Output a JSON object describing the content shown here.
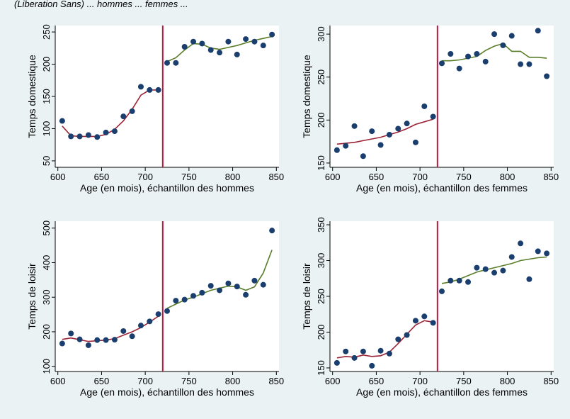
{
  "header_fragment": "(Liberation Sans) ... hommes ... femmes ...",
  "colors": {
    "page_background": "#eaf2f3",
    "plot_background": "#ffffff",
    "points": "#1a3f6f",
    "fit_before": "#9b2335",
    "fit_after": "#5a7d2a",
    "cutoff_line": "#c0143c"
  },
  "chart_data": [
    {
      "type": "scatter",
      "title": "",
      "xlabel": "Age (en mois), échantillon des hommes",
      "ylabel": "Temps domestique",
      "xlim": [
        597,
        853
      ],
      "ylim": [
        40,
        260
      ],
      "xticks": [
        600,
        650,
        700,
        750,
        800,
        850
      ],
      "yticks": [
        50,
        100,
        150,
        200,
        250
      ],
      "cutoff": 720,
      "grid": false,
      "points": {
        "x": [
          605,
          615,
          625,
          635,
          645,
          655,
          665,
          675,
          685,
          695,
          705,
          715,
          725,
          735,
          745,
          755,
          765,
          775,
          785,
          795,
          805,
          815,
          825,
          835,
          845
        ],
        "y": [
          112,
          88,
          88,
          90,
          87,
          94,
          96,
          119,
          127,
          165,
          160,
          160,
          202,
          202,
          227,
          235,
          232,
          222,
          218,
          235,
          215,
          239,
          235,
          229,
          246
        ]
      },
      "fit_before": {
        "x": [
          605,
          615,
          625,
          635,
          645,
          655,
          665,
          675,
          685,
          695,
          705,
          715
        ],
        "y": [
          104,
          89,
          88,
          88,
          88,
          91,
          99,
          112,
          130,
          152,
          160,
          160
        ]
      },
      "fit_after": {
        "x": [
          725,
          735,
          745,
          755,
          765,
          775,
          785,
          795,
          805,
          815,
          825,
          835,
          845
        ],
        "y": [
          204,
          210,
          222,
          232,
          231,
          225,
          223,
          226,
          229,
          233,
          237,
          240,
          243
        ]
      }
    },
    {
      "type": "scatter",
      "title": "",
      "xlabel": "Age (en mois), échantillon des femmes",
      "ylabel": "Temps domestique",
      "xlim": [
        597,
        853
      ],
      "ylim": [
        145,
        310
      ],
      "xticks": [
        600,
        650,
        700,
        750,
        800,
        850
      ],
      "yticks": [
        150,
        200,
        250,
        300
      ],
      "cutoff": 720,
      "grid": false,
      "points": {
        "x": [
          605,
          615,
          625,
          635,
          645,
          655,
          665,
          675,
          685,
          695,
          705,
          715,
          725,
          735,
          745,
          755,
          765,
          775,
          785,
          795,
          805,
          815,
          825,
          835,
          845
        ],
        "y": [
          165,
          170,
          193,
          158,
          187,
          171,
          183,
          190,
          196,
          174,
          216,
          204,
          266,
          277,
          260,
          274,
          277,
          268,
          300,
          287,
          298,
          265,
          265,
          304,
          251
        ]
      },
      "fit_before": {
        "x": [
          605,
          615,
          625,
          635,
          645,
          655,
          665,
          675,
          685,
          695,
          705,
          715
        ],
        "y": [
          172,
          173,
          174,
          176,
          178,
          180,
          183,
          186,
          190,
          195,
          198,
          201
        ]
      },
      "fit_after": {
        "x": [
          725,
          735,
          745,
          755,
          765,
          775,
          785,
          795,
          805,
          815,
          825,
          835,
          845
        ],
        "y": [
          269,
          269,
          270,
          272,
          274,
          281,
          286,
          289,
          280,
          280,
          273,
          273,
          272
        ]
      }
    },
    {
      "type": "scatter",
      "title": "",
      "xlabel": "Age (en mois), échantillon des hommes",
      "ylabel": "Temps de loisir",
      "xlim": [
        597,
        853
      ],
      "ylim": [
        85,
        520
      ],
      "xticks": [
        600,
        650,
        700,
        750,
        800,
        850
      ],
      "yticks": [
        100,
        200,
        300,
        400,
        500
      ],
      "cutoff": 720,
      "grid": false,
      "points": {
        "x": [
          605,
          615,
          625,
          635,
          645,
          655,
          665,
          675,
          685,
          695,
          705,
          715,
          725,
          735,
          745,
          755,
          765,
          775,
          785,
          795,
          805,
          815,
          825,
          835,
          845
        ],
        "y": [
          166,
          195,
          178,
          161,
          176,
          176,
          177,
          202,
          187,
          218,
          230,
          251,
          260,
          290,
          293,
          304,
          313,
          333,
          320,
          340,
          331,
          307,
          348,
          336,
          493
        ]
      },
      "fit_before": {
        "x": [
          605,
          615,
          625,
          635,
          645,
          655,
          665,
          675,
          685,
          695,
          705,
          715
        ],
        "y": [
          178,
          182,
          177,
          172,
          174,
          176,
          180,
          190,
          200,
          212,
          228,
          245
        ]
      },
      "fit_after": {
        "x": [
          725,
          735,
          745,
          755,
          765,
          775,
          785,
          795,
          805,
          815,
          825,
          835,
          845
        ],
        "y": [
          268,
          280,
          292,
          300,
          310,
          320,
          326,
          332,
          330,
          320,
          330,
          370,
          437
        ]
      }
    },
    {
      "type": "scatter",
      "title": "",
      "xlabel": "Age (en mois), échantillon des femmes",
      "ylabel": "Temps de loisir",
      "xlim": [
        597,
        853
      ],
      "ylim": [
        145,
        355
      ],
      "xticks": [
        600,
        650,
        700,
        750,
        800,
        850
      ],
      "yticks": [
        150,
        200,
        250,
        300,
        350
      ],
      "cutoff": 720,
      "grid": false,
      "points": {
        "x": [
          605,
          615,
          625,
          635,
          645,
          655,
          665,
          675,
          685,
          695,
          705,
          715,
          725,
          735,
          745,
          755,
          765,
          775,
          785,
          795,
          805,
          815,
          825,
          835,
          845
        ],
        "y": [
          157,
          173,
          164,
          173,
          153,
          174,
          170,
          190,
          196,
          216,
          222,
          213,
          257,
          272,
          272,
          270,
          290,
          288,
          283,
          286,
          305,
          324,
          274,
          313,
          310
        ]
      },
      "fit_before": {
        "x": [
          605,
          615,
          625,
          635,
          645,
          655,
          665,
          675,
          685,
          695,
          705,
          715
        ],
        "y": [
          164,
          166,
          165,
          168,
          166,
          167,
          172,
          184,
          197,
          210,
          216,
          214
        ]
      },
      "fit_after": {
        "x": [
          725,
          735,
          745,
          755,
          765,
          775,
          785,
          795,
          805,
          815,
          825,
          835,
          845
        ],
        "y": [
          268,
          270,
          274,
          279,
          284,
          287,
          290,
          293,
          296,
          300,
          302,
          304,
          305
        ]
      }
    }
  ]
}
